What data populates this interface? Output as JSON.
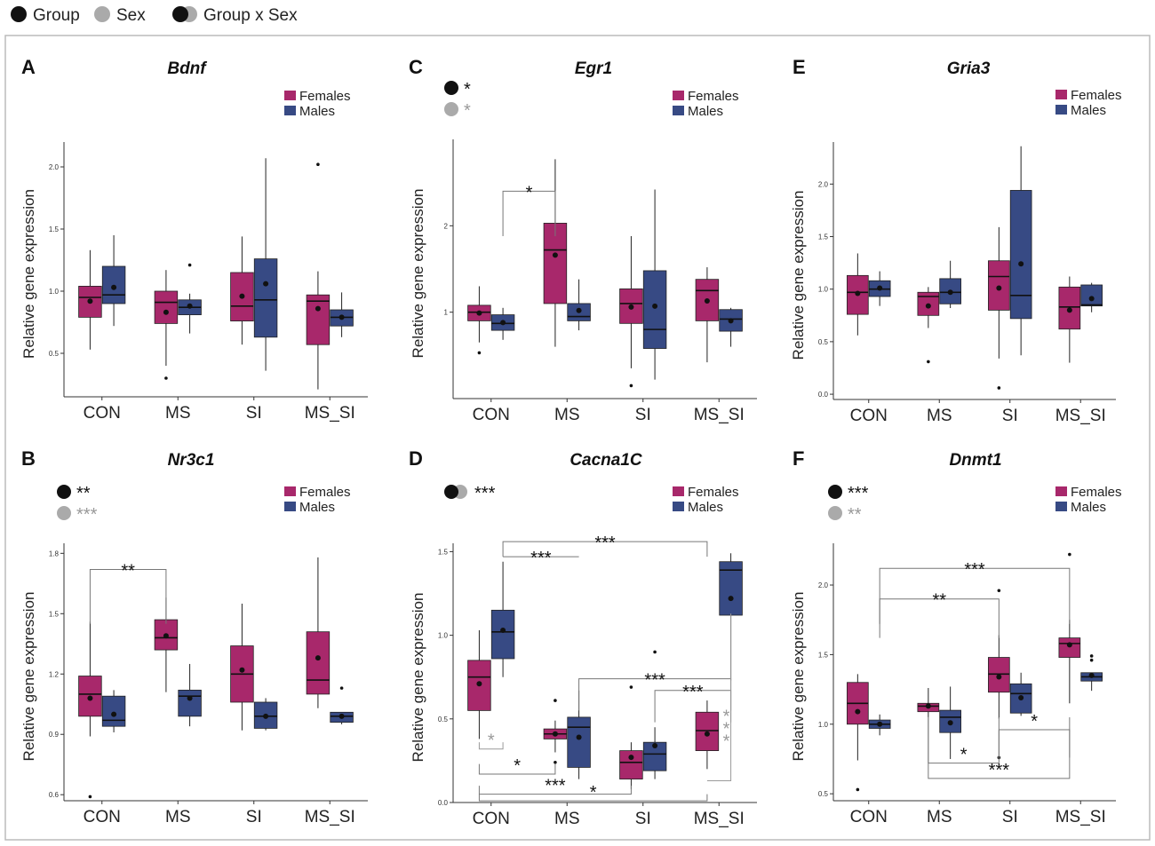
{
  "legend": {
    "group_label": "Group",
    "sex_label": "Sex",
    "interaction_label": "Group x Sex",
    "group_color": "#111111",
    "sex_color": "#aaaaaa"
  },
  "colors": {
    "females": "#a8286b",
    "males": "#374a84",
    "sig_black": "#222222",
    "sig_gray": "#999999"
  },
  "chart_data": [
    {
      "letter": "A",
      "title": "Bdnf",
      "type": "boxplot",
      "ylabel": "Relative gene expression",
      "categories": [
        "CON",
        "MS",
        "SI",
        "MS_SI"
      ],
      "legend": [
        "Females",
        "Males"
      ],
      "ylim": [
        0.15,
        2.2
      ],
      "yticks": [
        "0.5",
        "1.0",
        "1.5",
        "2.0"
      ],
      "effects": [],
      "series": [
        {
          "name": "Females",
          "boxes": [
            {
              "min": 0.53,
              "q1": 0.79,
              "med": 0.95,
              "q3": 1.04,
              "max": 1.33,
              "mean": 0.92,
              "outliers": []
            },
            {
              "min": 0.4,
              "q1": 0.74,
              "med": 0.91,
              "q3": 1.0,
              "max": 1.17,
              "mean": 0.83,
              "outliers": [
                0.3
              ]
            },
            {
              "min": 0.57,
              "q1": 0.76,
              "med": 0.88,
              "q3": 1.15,
              "max": 1.44,
              "mean": 0.96,
              "outliers": []
            },
            {
              "min": 0.21,
              "q1": 0.57,
              "med": 0.92,
              "q3": 0.97,
              "max": 1.16,
              "mean": 0.86,
              "outliers": [
                2.02
              ]
            }
          ]
        },
        {
          "name": "Males",
          "boxes": [
            {
              "min": 0.72,
              "q1": 0.9,
              "med": 0.97,
              "q3": 1.2,
              "max": 1.45,
              "mean": 1.03,
              "outliers": []
            },
            {
              "min": 0.66,
              "q1": 0.81,
              "med": 0.87,
              "q3": 0.93,
              "max": 0.98,
              "mean": 0.88,
              "outliers": [
                1.21
              ]
            },
            {
              "min": 0.36,
              "q1": 0.63,
              "med": 0.93,
              "q3": 1.26,
              "max": 2.07,
              "mean": 1.06,
              "outliers": []
            },
            {
              "min": 0.63,
              "q1": 0.72,
              "med": 0.79,
              "q3": 0.85,
              "max": 0.99,
              "mean": 0.79,
              "outliers": []
            }
          ]
        }
      ],
      "brackets": []
    },
    {
      "letter": "C",
      "title": "Egr1",
      "type": "boxplot",
      "ylabel": "Relative gene expression",
      "categories": [
        "CON",
        "MS",
        "SI",
        "MS_SI"
      ],
      "legend": [
        "Females",
        "Males"
      ],
      "ylim": [
        0.0,
        3.0
      ],
      "yticks": [
        "1",
        "2"
      ],
      "effects": [
        {
          "kind": "group",
          "stars": "*"
        },
        {
          "kind": "sex",
          "stars": "*"
        }
      ],
      "series": [
        {
          "name": "Females",
          "boxes": [
            {
              "min": 0.65,
              "q1": 0.9,
              "med": 1.0,
              "q3": 1.08,
              "max": 1.3,
              "mean": 0.99,
              "outliers": [
                0.53
              ]
            },
            {
              "min": 0.6,
              "q1": 1.1,
              "med": 1.72,
              "q3": 2.03,
              "max": 2.77,
              "mean": 1.66,
              "outliers": []
            },
            {
              "min": 0.35,
              "q1": 0.87,
              "med": 1.1,
              "q3": 1.27,
              "max": 1.88,
              "mean": 1.06,
              "outliers": [
                0.15
              ]
            },
            {
              "min": 0.42,
              "q1": 0.9,
              "med": 1.25,
              "q3": 1.38,
              "max": 1.52,
              "mean": 1.13,
              "outliers": []
            }
          ]
        },
        {
          "name": "Males",
          "boxes": [
            {
              "min": 0.68,
              "q1": 0.79,
              "med": 0.87,
              "q3": 0.97,
              "max": 1.05,
              "mean": 0.88,
              "outliers": []
            },
            {
              "min": 0.79,
              "q1": 0.9,
              "med": 0.95,
              "q3": 1.1,
              "max": 1.38,
              "mean": 1.02,
              "outliers": []
            },
            {
              "min": 0.22,
              "q1": 0.58,
              "med": 0.8,
              "q3": 1.48,
              "max": 2.42,
              "mean": 1.07,
              "outliers": []
            },
            {
              "min": 0.6,
              "q1": 0.78,
              "med": 0.92,
              "q3": 1.03,
              "max": 1.05,
              "mean": 0.9,
              "outliers": []
            }
          ]
        }
      ],
      "brackets": [
        {
          "from": [
            0,
            1
          ],
          "to": [
            1,
            0
          ],
          "stars": "*",
          "y": 1.88,
          "level": 2.4,
          "color": "black"
        }
      ]
    },
    {
      "letter": "E",
      "title": "Gria3",
      "type": "boxplot",
      "ylabel": "Relative gene expression",
      "categories": [
        "CON",
        "MS",
        "SI",
        "MS_SI"
      ],
      "legend": [
        "Females",
        "Males"
      ],
      "ylim": [
        -0.05,
        2.4
      ],
      "yticks": [
        "0.0",
        "0.5",
        "1.0",
        "1.5",
        "2.0"
      ],
      "effects": [],
      "series": [
        {
          "name": "Females",
          "boxes": [
            {
              "min": 0.56,
              "q1": 0.76,
              "med": 0.97,
              "q3": 1.13,
              "max": 1.34,
              "mean": 0.96,
              "outliers": []
            },
            {
              "min": 0.63,
              "q1": 0.75,
              "med": 0.93,
              "q3": 0.97,
              "max": 1.02,
              "mean": 0.84,
              "outliers": [
                0.31
              ]
            },
            {
              "min": 0.34,
              "q1": 0.8,
              "med": 1.12,
              "q3": 1.27,
              "max": 1.59,
              "mean": 1.01,
              "outliers": [
                0.06
              ]
            },
            {
              "min": 0.3,
              "q1": 0.62,
              "med": 0.83,
              "q3": 1.02,
              "max": 1.12,
              "mean": 0.8,
              "outliers": []
            }
          ]
        },
        {
          "name": "Males",
          "boxes": [
            {
              "min": 0.84,
              "q1": 0.93,
              "med": 1.0,
              "q3": 1.08,
              "max": 1.17,
              "mean": 1.01,
              "outliers": []
            },
            {
              "min": 0.82,
              "q1": 0.86,
              "med": 0.97,
              "q3": 1.1,
              "max": 1.27,
              "mean": 0.97,
              "outliers": []
            },
            {
              "min": 0.37,
              "q1": 0.72,
              "med": 0.94,
              "q3": 1.94,
              "max": 2.36,
              "mean": 1.24,
              "outliers": []
            },
            {
              "min": 0.78,
              "q1": 0.84,
              "med": 0.85,
              "q3": 1.04,
              "max": 1.06,
              "mean": 0.91,
              "outliers": []
            }
          ]
        }
      ],
      "brackets": []
    },
    {
      "letter": "B",
      "title": "Nr3c1",
      "type": "boxplot",
      "ylabel": "Relative gene expression",
      "categories": [
        "CON",
        "MS",
        "SI",
        "MS_SI"
      ],
      "legend": [
        "Females",
        "Males"
      ],
      "ylim": [
        0.57,
        1.85
      ],
      "yticks": [
        "0.6",
        "0.9",
        "1.2",
        "1.5",
        "1.8"
      ],
      "effects": [
        {
          "kind": "group",
          "stars": "**"
        },
        {
          "kind": "sex",
          "stars": "***"
        }
      ],
      "series": [
        {
          "name": "Females",
          "boxes": [
            {
              "min": 0.89,
              "q1": 0.99,
              "med": 1.1,
              "q3": 1.19,
              "max": 1.46,
              "mean": 1.08,
              "outliers": [
                0.59
              ]
            },
            {
              "min": 1.11,
              "q1": 1.32,
              "med": 1.38,
              "q3": 1.47,
              "max": 1.58,
              "mean": 1.39,
              "outliers": []
            },
            {
              "min": 0.92,
              "q1": 1.06,
              "med": 1.2,
              "q3": 1.34,
              "max": 1.55,
              "mean": 1.22,
              "outliers": []
            },
            {
              "min": 1.03,
              "q1": 1.1,
              "med": 1.17,
              "q3": 1.41,
              "max": 1.78,
              "mean": 1.28,
              "outliers": []
            }
          ]
        },
        {
          "name": "Males",
          "boxes": [
            {
              "min": 0.91,
              "q1": 0.94,
              "med": 0.97,
              "q3": 1.09,
              "max": 1.12,
              "mean": 1.0,
              "outliers": []
            },
            {
              "min": 0.94,
              "q1": 0.99,
              "med": 1.09,
              "q3": 1.12,
              "max": 1.25,
              "mean": 1.08,
              "outliers": []
            },
            {
              "min": 0.92,
              "q1": 0.93,
              "med": 0.99,
              "q3": 1.06,
              "max": 1.08,
              "mean": 0.99,
              "outliers": []
            },
            {
              "min": 0.95,
              "q1": 0.96,
              "med": 0.99,
              "q3": 1.01,
              "max": 1.01,
              "mean": 0.99,
              "outliers": [
                1.13
              ]
            }
          ]
        }
      ],
      "brackets": [
        {
          "from": [
            0,
            0
          ],
          "to": [
            1,
            0
          ],
          "stars": "**",
          "y": 1.45,
          "level": 1.72,
          "color": "black"
        }
      ]
    },
    {
      "letter": "D",
      "title": "Cacna1C",
      "type": "boxplot",
      "ylabel": "Relative gene expression",
      "categories": [
        "CON",
        "MS",
        "SI",
        "MS_SI"
      ],
      "legend": [
        "Females",
        "Males"
      ],
      "ylim": [
        0.0,
        1.55
      ],
      "yticks": [
        "0.0",
        "0.5",
        "1.0",
        "1.5"
      ],
      "effects": [
        {
          "kind": "interaction",
          "stars": "***"
        }
      ],
      "series": [
        {
          "name": "Females",
          "boxes": [
            {
              "min": 0.38,
              "q1": 0.55,
              "med": 0.75,
              "q3": 0.85,
              "max": 1.03,
              "mean": 0.71,
              "outliers": []
            },
            {
              "min": 0.3,
              "q1": 0.38,
              "med": 0.41,
              "q3": 0.44,
              "max": 0.49,
              "mean": 0.41,
              "outliers": [
                0.24,
                0.61
              ]
            },
            {
              "min": 0.08,
              "q1": 0.14,
              "med": 0.24,
              "q3": 0.31,
              "max": 0.36,
              "mean": 0.27,
              "outliers": [
                0.69
              ]
            },
            {
              "min": 0.2,
              "q1": 0.31,
              "med": 0.43,
              "q3": 0.54,
              "max": 0.61,
              "mean": 0.41,
              "outliers": []
            }
          ]
        },
        {
          "name": "Males",
          "boxes": [
            {
              "min": 0.75,
              "q1": 0.86,
              "med": 1.02,
              "q3": 1.15,
              "max": 1.44,
              "mean": 1.03,
              "outliers": []
            },
            {
              "min": 0.14,
              "q1": 0.21,
              "med": 0.45,
              "q3": 0.51,
              "max": 0.67,
              "mean": 0.39,
              "outliers": []
            },
            {
              "min": 0.14,
              "q1": 0.19,
              "med": 0.29,
              "q3": 0.36,
              "max": 0.45,
              "mean": 0.34,
              "outliers": [
                0.9
              ]
            },
            {
              "min": 0.73,
              "q1": 1.12,
              "med": 1.39,
              "q3": 1.44,
              "max": 1.49,
              "mean": 1.22,
              "outliers": []
            }
          ]
        }
      ],
      "brackets": [
        {
          "from": [
            0,
            1
          ],
          "to": [
            3,
            0
          ],
          "stars": "***",
          "y": 1.47,
          "level": 1.56,
          "color": "black"
        },
        {
          "from": [
            0,
            1
          ],
          "to": [
            1,
            1
          ],
          "stars": "***",
          "y": 1.47,
          "level": 1.47,
          "color": "black"
        },
        {
          "from": [
            1,
            1
          ],
          "to": [
            3,
            1
          ],
          "stars": "***",
          "y": 0.55,
          "level": 0.74,
          "color": "black"
        },
        {
          "from": [
            2,
            1
          ],
          "to": [
            3,
            1
          ],
          "stars": "***",
          "y": 0.48,
          "level": 0.67,
          "color": "black"
        },
        {
          "from": [
            0,
            0
          ],
          "to": [
            0,
            1
          ],
          "stars": "*",
          "y": 0.36,
          "level": 0.32,
          "color": "gray",
          "flipped": true
        },
        {
          "from": [
            0,
            0
          ],
          "to": [
            1,
            0
          ],
          "stars": "*",
          "y": 0.23,
          "level": 0.17,
          "color": "black",
          "flipped": true
        },
        {
          "from": [
            0,
            0
          ],
          "to": [
            2,
            0
          ],
          "stars": "***",
          "y": 0.1,
          "level": 0.05,
          "color": "black",
          "flipped": true
        },
        {
          "from": [
            0,
            0
          ],
          "to": [
            3,
            0
          ],
          "stars": "*",
          "y": 0.05,
          "level": 0.01,
          "color": "black",
          "flipped": true
        },
        {
          "from": [
            3,
            0
          ],
          "to": [
            3,
            1
          ],
          "stars": "***",
          "y": 0.22,
          "level": 0.13,
          "color": "gray",
          "flipped": true,
          "vertical": true
        }
      ]
    },
    {
      "letter": "F",
      "title": "Dnmt1",
      "type": "boxplot",
      "ylabel": "Relative gene expression",
      "categories": [
        "CON",
        "MS",
        "SI",
        "MS_SI"
      ],
      "legend": [
        "Females",
        "Males"
      ],
      "ylim": [
        0.45,
        2.3
      ],
      "yticks": [
        "0.5",
        "1.0",
        "1.5",
        "2.0"
      ],
      "effects": [
        {
          "kind": "group",
          "stars": "***"
        },
        {
          "kind": "sex",
          "stars": "**"
        }
      ],
      "series": [
        {
          "name": "Females",
          "boxes": [
            {
              "min": 0.74,
              "q1": 1.0,
              "med": 1.15,
              "q3": 1.3,
              "max": 1.36,
              "mean": 1.09,
              "outliers": [
                0.53
              ]
            },
            {
              "min": 1.05,
              "q1": 1.09,
              "med": 1.13,
              "q3": 1.15,
              "max": 1.26,
              "mean": 1.13,
              "outliers": []
            },
            {
              "min": 1.04,
              "q1": 1.23,
              "med": 1.36,
              "q3": 1.48,
              "max": 1.64,
              "mean": 1.34,
              "outliers": [
                0.76,
                1.96
              ]
            },
            {
              "min": 1.15,
              "q1": 1.48,
              "med": 1.58,
              "q3": 1.62,
              "max": 1.75,
              "mean": 1.57,
              "outliers": [
                2.22
              ]
            }
          ]
        },
        {
          "name": "Males",
          "boxes": [
            {
              "min": 0.92,
              "q1": 0.97,
              "med": 1.0,
              "q3": 1.03,
              "max": 1.07,
              "mean": 1.0,
              "outliers": []
            },
            {
              "min": 0.75,
              "q1": 0.94,
              "med": 1.05,
              "q3": 1.1,
              "max": 1.27,
              "mean": 1.01,
              "outliers": []
            },
            {
              "min": 1.06,
              "q1": 1.08,
              "med": 1.22,
              "q3": 1.29,
              "max": 1.37,
              "mean": 1.19,
              "outliers": []
            },
            {
              "min": 1.24,
              "q1": 1.31,
              "med": 1.34,
              "q3": 1.37,
              "max": 1.37,
              "mean": 1.35,
              "outliers": [
                1.46,
                1.49
              ]
            }
          ]
        }
      ],
      "brackets": [
        {
          "from": [
            0,
            1
          ],
          "to": [
            3,
            0
          ],
          "stars": "***",
          "y": 1.72,
          "level": 2.12,
          "color": "black"
        },
        {
          "from": [
            0,
            1
          ],
          "to": [
            2,
            0
          ],
          "stars": "**",
          "y": 1.62,
          "level": 1.9,
          "color": "black"
        },
        {
          "from": [
            2,
            0
          ],
          "to": [
            3,
            0
          ],
          "stars": "*",
          "y": 0.76,
          "level": 0.96,
          "color": "black",
          "flipped": true
        },
        {
          "from": [
            1,
            0
          ],
          "to": [
            2,
            0
          ],
          "stars": "*",
          "y": 1.05,
          "level": 0.72,
          "color": "black",
          "flipped": true
        },
        {
          "from": [
            1,
            0
          ],
          "to": [
            3,
            0
          ],
          "stars": "***",
          "y": 1.05,
          "level": 0.61,
          "color": "black",
          "flipped": true
        }
      ]
    }
  ]
}
